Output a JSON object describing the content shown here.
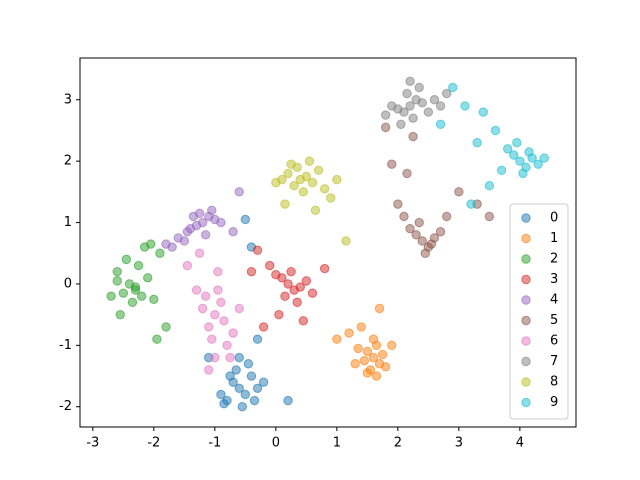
{
  "chart_data": {
    "type": "scatter",
    "xlim": [
      -3.21,
      4.92
    ],
    "ylim": [
      -2.33,
      3.68
    ],
    "xticks": [
      -3,
      -2,
      -1,
      0,
      1,
      2,
      3,
      4
    ],
    "yticks": [
      -2,
      -1,
      0,
      1,
      2,
      3
    ],
    "legend": "lower right",
    "series": [
      {
        "name": "0",
        "color": "#1f77b4",
        "x": [
          -0.6,
          -0.5,
          -0.7,
          -0.8,
          -0.4,
          -0.55,
          -0.65,
          -0.3,
          -0.9,
          -0.45,
          -0.75,
          -0.35,
          -0.6,
          -0.2,
          -1.1,
          -0.3,
          0.2,
          -0.4,
          -0.5,
          -0.85
        ],
        "values": [
          -1.7,
          -1.8,
          -1.6,
          -1.9,
          -1.5,
          -2.0,
          -1.4,
          -1.7,
          -1.8,
          -1.3,
          -1.5,
          -1.9,
          -1.2,
          -1.6,
          -1.2,
          -0.9,
          -1.9,
          0.6,
          1.05,
          -1.95
        ]
      },
      {
        "name": "1",
        "color": "#ff7f0e",
        "x": [
          1.6,
          1.5,
          1.7,
          1.55,
          1.65,
          1.45,
          1.75,
          1.6,
          1.35,
          1.8,
          1.2,
          1.4,
          1.0,
          1.7,
          1.5,
          1.9,
          1.65,
          1.3
        ],
        "values": [
          -1.2,
          -1.1,
          -1.3,
          -1.4,
          -1.0,
          -1.25,
          -1.15,
          -0.9,
          -1.05,
          -1.35,
          -0.8,
          -0.7,
          -0.9,
          -0.4,
          -1.45,
          -1.0,
          -1.5,
          -1.3
        ]
      },
      {
        "name": "2",
        "color": "#2ca02c",
        "x": [
          -2.3,
          -2.2,
          -2.4,
          -2.5,
          -2.1,
          -2.6,
          -2.35,
          -2.25,
          -2.0,
          -2.7,
          -2.45,
          -1.9,
          -2.15,
          -2.55,
          -1.8,
          -2.3,
          -2.05,
          -1.95,
          -2.6
        ],
        "values": [
          -0.1,
          -0.2,
          0.0,
          -0.15,
          0.1,
          0.05,
          -0.3,
          0.3,
          -0.25,
          -0.2,
          0.4,
          0.5,
          0.6,
          -0.5,
          -0.7,
          -0.05,
          0.65,
          -0.9,
          0.2
        ]
      },
      {
        "name": "3",
        "color": "#d62728",
        "x": [
          0.2,
          0.1,
          0.3,
          0.0,
          0.4,
          0.25,
          0.15,
          -0.1,
          0.5,
          0.35,
          -0.3,
          0.6,
          0.05,
          -0.2,
          0.8,
          -0.4,
          0.45
        ],
        "values": [
          0.0,
          0.1,
          -0.1,
          0.15,
          -0.05,
          0.2,
          -0.2,
          0.3,
          0.05,
          -0.3,
          0.55,
          -0.15,
          -0.5,
          -0.7,
          0.25,
          0.2,
          -0.6
        ]
      },
      {
        "name": "4",
        "color": "#9467bd",
        "x": [
          -1.2,
          -1.1,
          -1.3,
          -1.0,
          -1.4,
          -1.25,
          -1.15,
          -0.9,
          -1.5,
          -1.6,
          -1.8,
          -0.7,
          -1.05,
          -1.35,
          -1.7,
          -0.6,
          -1.45
        ],
        "values": [
          1.0,
          1.1,
          0.95,
          1.05,
          0.9,
          1.15,
          0.8,
          1.0,
          0.7,
          0.75,
          0.65,
          0.85,
          1.2,
          1.1,
          0.6,
          1.5,
          0.85
        ]
      },
      {
        "name": "5",
        "color": "#8c564b",
        "x": [
          2.4,
          2.3,
          2.5,
          2.6,
          2.2,
          2.45,
          2.35,
          2.7,
          2.1,
          2.55,
          2.0,
          2.15,
          3.3,
          3.0,
          1.9,
          2.25,
          2.8,
          3.5,
          1.8
        ],
        "values": [
          0.7,
          0.8,
          0.6,
          0.75,
          0.9,
          0.5,
          1.0,
          0.85,
          1.1,
          0.65,
          1.3,
          1.8,
          1.3,
          1.5,
          1.95,
          2.4,
          1.1,
          1.1,
          2.55
        ]
      },
      {
        "name": "6",
        "color": "#e377c2",
        "x": [
          -1.0,
          -0.9,
          -1.1,
          -0.95,
          -1.05,
          -0.85,
          -1.15,
          -0.8,
          -1.2,
          -1.3,
          -0.7,
          -1.0,
          -1.45,
          -0.6,
          -0.95,
          -1.1,
          -0.75,
          -1.25
        ],
        "values": [
          -0.5,
          -0.3,
          -0.7,
          -0.1,
          -0.9,
          -0.6,
          -0.2,
          -1.0,
          -0.4,
          -0.1,
          -0.8,
          -1.2,
          0.3,
          -0.4,
          0.2,
          -1.4,
          -1.2,
          0.5
        ]
      },
      {
        "name": "7",
        "color": "#7f7f7f",
        "x": [
          2.2,
          2.1,
          2.3,
          2.0,
          2.4,
          2.15,
          2.25,
          1.9,
          2.5,
          2.35,
          2.05,
          2.6,
          1.8,
          2.7,
          2.2,
          2.8
        ],
        "values": [
          2.9,
          2.8,
          3.0,
          2.85,
          2.95,
          3.1,
          2.7,
          2.9,
          2.8,
          3.2,
          2.6,
          3.0,
          2.75,
          2.9,
          3.3,
          3.1
        ]
      },
      {
        "name": "8",
        "color": "#bcbd22",
        "x": [
          0.4,
          0.3,
          0.5,
          0.2,
          0.6,
          0.35,
          0.45,
          0.1,
          0.7,
          0.0,
          0.8,
          0.25,
          0.9,
          1.0,
          0.55,
          0.15,
          1.15,
          0.65
        ],
        "values": [
          1.7,
          1.6,
          1.75,
          1.8,
          1.65,
          1.9,
          1.5,
          1.7,
          1.85,
          1.65,
          1.55,
          1.95,
          1.4,
          1.7,
          2.0,
          1.3,
          0.7,
          1.2
        ]
      },
      {
        "name": "9",
        "color": "#17becf",
        "x": [
          4.0,
          3.9,
          4.1,
          4.2,
          3.8,
          4.05,
          3.95,
          4.3,
          3.7,
          4.15,
          3.6,
          3.4,
          3.3,
          3.1,
          2.9,
          3.5,
          4.4,
          2.7,
          3.2
        ],
        "values": [
          2.0,
          2.1,
          1.9,
          2.05,
          2.2,
          1.8,
          2.3,
          1.95,
          1.85,
          2.15,
          2.5,
          2.8,
          2.3,
          2.9,
          3.2,
          1.6,
          2.05,
          2.6,
          1.3
        ]
      }
    ]
  }
}
